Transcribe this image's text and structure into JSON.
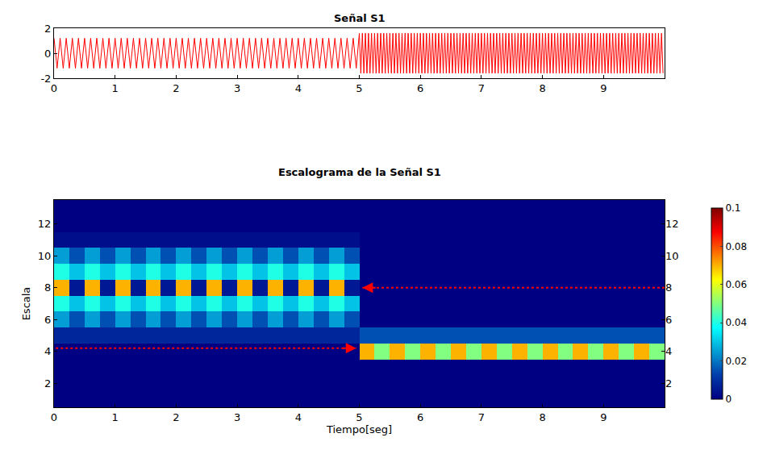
{
  "chart_data": [
    {
      "type": "line",
      "title": "Señal S1",
      "color": "#ff0000",
      "x": [
        0,
        0.05,
        0.1,
        0.15,
        0.2,
        0.25,
        0.3,
        0.35,
        0.4,
        0.45,
        0.5,
        0.55,
        0.6,
        0.65,
        0.7,
        0.75,
        0.8,
        0.85,
        0.9,
        0.95,
        1,
        1.05,
        1.1,
        1.15,
        1.2,
        1.25,
        1.3,
        1.35,
        1.4,
        1.45,
        1.5,
        1.55,
        1.6,
        1.65,
        1.7,
        1.75,
        1.8,
        1.85,
        1.9,
        1.95,
        2,
        2.05,
        2.1,
        2.15,
        2.2,
        2.25,
        2.3,
        2.35,
        2.4,
        2.45,
        2.5,
        2.55,
        2.6,
        2.65,
        2.7,
        2.75,
        2.8,
        2.85,
        2.9,
        2.95,
        3,
        3.05,
        3.1,
        3.15,
        3.2,
        3.25,
        3.3,
        3.35,
        3.4,
        3.45,
        3.5,
        3.55,
        3.6,
        3.65,
        3.7,
        3.75,
        3.8,
        3.85,
        3.9,
        3.95,
        4,
        4.05,
        4.1,
        4.15,
        4.2,
        4.25,
        4.3,
        4.35,
        4.4,
        4.45,
        4.5,
        4.55,
        4.6,
        4.65,
        4.7,
        4.75,
        4.8,
        4.85,
        4.9,
        4.95,
        5,
        5.025,
        5.05,
        5.075,
        5.1,
        5.125,
        5.15,
        5.175,
        5.2,
        5.225,
        5.25,
        5.275,
        5.3,
        5.325,
        5.35,
        5.375,
        5.4,
        5.425,
        5.45,
        5.475,
        5.5,
        5.525,
        5.55,
        5.575,
        5.6,
        5.625,
        5.65,
        5.675,
        5.7,
        5.725,
        5.75,
        5.775,
        5.8,
        5.825,
        5.85,
        5.875,
        5.9,
        5.925,
        5.95,
        5.975,
        6,
        6.025,
        6.05,
        6.075,
        6.1,
        6.125,
        6.15,
        6.175,
        6.2,
        6.225,
        6.25,
        6.275,
        6.3,
        6.325,
        6.35,
        6.375,
        6.4,
        6.425,
        6.45,
        6.475,
        6.5,
        6.525,
        6.55,
        6.575,
        6.6,
        6.625,
        6.65,
        6.675,
        6.7,
        6.725,
        6.75,
        6.775,
        6.8,
        6.825,
        6.85,
        6.875,
        6.9,
        6.925,
        6.95,
        6.975,
        7,
        7.025,
        7.05,
        7.075,
        7.1,
        7.125,
        7.15,
        7.175,
        7.2,
        7.225,
        7.25,
        7.275,
        7.3,
        7.325,
        7.35,
        7.375,
        7.4,
        7.425,
        7.45,
        7.475,
        7.5,
        7.525,
        7.55,
        7.575,
        7.6,
        7.625,
        7.65,
        7.675,
        7.7,
        7.725,
        7.75,
        7.775,
        7.8,
        7.825,
        7.85,
        7.875,
        7.9,
        7.925,
        7.95,
        7.975,
        8,
        8.025,
        8.05,
        8.075,
        8.1,
        8.125,
        8.15,
        8.175,
        8.2,
        8.225,
        8.25,
        8.275,
        8.3,
        8.325,
        8.35,
        8.375,
        8.4,
        8.425,
        8.45,
        8.475,
        8.5,
        8.525,
        8.55,
        8.575,
        8.6,
        8.625,
        8.65,
        8.675,
        8.7,
        8.725,
        8.75,
        8.775,
        8.8,
        8.825,
        8.85,
        8.875,
        8.9,
        8.925,
        8.95,
        8.975,
        9,
        9.025,
        9.05,
        9.075,
        9.1,
        9.125,
        9.15,
        9.175,
        9.2,
        9.225,
        9.25,
        9.275,
        9.3,
        9.325,
        9.35,
        9.375,
        9.4,
        9.425,
        9.45,
        9.475,
        9.5,
        9.525,
        9.55,
        9.575,
        9.6,
        9.625,
        9.65,
        9.675,
        9.7,
        9.725,
        9.75,
        9.775,
        9.8,
        9.825,
        9.85,
        9.875,
        9.9,
        9.925,
        9.95,
        9.975
      ],
      "values": [
        1.2,
        -1.2,
        1.2,
        -1.2,
        1.2,
        -1.2,
        1.2,
        -1.2,
        1.2,
        -1.2,
        1.2,
        -1.2,
        1.2,
        -1.2,
        1.2,
        -1.2,
        1.2,
        -1.2,
        1.2,
        -1.2,
        1.2,
        -1.2,
        1.2,
        -1.2,
        1.2,
        -1.2,
        1.2,
        -1.2,
        1.2,
        -1.2,
        1.2,
        -1.2,
        1.2,
        -1.2,
        1.2,
        -1.2,
        1.2,
        -1.2,
        1.2,
        -1.2,
        1.2,
        -1.2,
        1.2,
        -1.2,
        1.2,
        -1.2,
        1.2,
        -1.2,
        1.2,
        -1.2,
        1.2,
        -1.2,
        1.2,
        -1.2,
        1.2,
        -1.2,
        1.2,
        -1.2,
        1.2,
        -1.2,
        1.2,
        -1.2,
        1.2,
        -1.2,
        1.2,
        -1.2,
        1.2,
        -1.2,
        1.2,
        -1.2,
        1.2,
        -1.2,
        1.2,
        -1.2,
        1.2,
        -1.2,
        1.2,
        -1.2,
        1.2,
        -1.2,
        1.2,
        -1.2,
        1.2,
        -1.2,
        1.2,
        -1.2,
        1.2,
        -1.2,
        1.2,
        -1.2,
        1.2,
        -1.2,
        1.2,
        -1.2,
        1.2,
        -1.2,
        1.2,
        -1.2,
        1.2,
        -1.2,
        1.6,
        -1.6,
        1.6,
        -1.6,
        1.6,
        -1.6,
        1.6,
        -1.6,
        1.6,
        -1.6,
        1.6,
        -1.6,
        1.6,
        -1.6,
        1.6,
        -1.6,
        1.6,
        -1.6,
        1.6,
        -1.6,
        1.6,
        -1.6,
        1.6,
        -1.6,
        1.6,
        -1.6,
        1.6,
        -1.6,
        1.6,
        -1.6,
        1.6,
        -1.6,
        1.6,
        -1.6,
        1.6,
        -1.6,
        1.6,
        -1.6,
        1.6,
        -1.6,
        1.6,
        -1.6,
        1.6,
        -1.6,
        1.6,
        -1.6,
        1.6,
        -1.6,
        1.6,
        -1.6,
        1.6,
        -1.6,
        1.6,
        -1.6,
        1.6,
        -1.6,
        1.6,
        -1.6,
        1.6,
        -1.6,
        1.6,
        -1.6,
        1.6,
        -1.6,
        1.6,
        -1.6,
        1.6,
        -1.6,
        1.6,
        -1.6,
        1.6,
        -1.6,
        1.6,
        -1.6,
        1.6,
        -1.6,
        1.6,
        -1.6,
        1.6,
        -1.6,
        1.6,
        -1.6,
        1.6,
        -1.6,
        1.6,
        -1.6,
        1.6,
        -1.6,
        1.6,
        -1.6,
        1.6,
        -1.6,
        1.6,
        -1.6,
        1.6,
        -1.6,
        1.6,
        -1.6,
        1.6,
        -1.6,
        1.6,
        -1.6,
        1.6,
        -1.6,
        1.6,
        -1.6,
        1.6,
        -1.6,
        1.6,
        -1.6,
        1.6,
        -1.6,
        1.6,
        -1.6,
        1.6,
        -1.6,
        1.6,
        -1.6,
        1.6,
        -1.6,
        1.6,
        -1.6,
        1.6,
        -1.6,
        1.6,
        -1.6,
        1.6,
        -1.6,
        1.6,
        -1.6,
        1.6,
        -1.6,
        1.6,
        -1.6,
        1.6,
        -1.6,
        1.6,
        -1.6,
        1.6,
        -1.6,
        1.6,
        -1.6,
        1.6,
        -1.6,
        1.6,
        -1.6,
        1.6,
        -1.6,
        1.6,
        -1.6,
        1.6,
        -1.6,
        1.6,
        -1.6,
        1.6,
        -1.6,
        1.6,
        -1.6,
        1.6,
        -1.6,
        1.6,
        -1.6,
        1.6,
        -1.6,
        1.6,
        -1.6,
        1.6,
        -1.6,
        1.6,
        -1.6,
        1.6,
        -1.6,
        1.6,
        -1.6,
        1.6,
        -1.6,
        1.6,
        -1.6,
        1.6,
        -1.6,
        1.6,
        -1.6,
        1.6,
        -1.6,
        1.6,
        -1.6,
        1.6,
        -1.6,
        1.6,
        -1.6,
        1.6,
        -1.6,
        1.6,
        -1.6,
        1.6,
        -1.6,
        1.6,
        -1.6,
        1.6,
        -1.6
      ],
      "xlim": [
        0,
        10
      ],
      "xticks": [
        0,
        1,
        2,
        3,
        4,
        5,
        6,
        7,
        8,
        9
      ],
      "ylim": [
        -2,
        2
      ],
      "yticks": [
        -2,
        0,
        2
      ],
      "grid": false
    },
    {
      "type": "heatmap",
      "title": "Escalograma de la Señal S1",
      "x_label": "Tiempo[seg]",
      "y_label": "Escala",
      "x": [
        0.125,
        0.375,
        0.625,
        0.875,
        1.125,
        1.375,
        1.625,
        1.875,
        2.125,
        2.375,
        2.625,
        2.875,
        3.125,
        3.375,
        3.625,
        3.875,
        4.125,
        4.375,
        4.625,
        4.875,
        5.125,
        5.375,
        5.625,
        5.875,
        6.125,
        6.375,
        6.625,
        6.875,
        7.125,
        7.375,
        7.625,
        7.875,
        8.125,
        8.375,
        8.625,
        8.875,
        9.125,
        9.375,
        9.625,
        9.875
      ],
      "y": [
        1,
        2,
        3,
        4,
        5,
        6,
        7,
        8,
        9,
        10,
        11,
        12,
        13
      ],
      "z": [
        [
          0,
          0,
          0,
          0,
          0,
          0,
          0,
          0,
          0,
          0,
          0,
          0,
          0,
          0,
          0,
          0,
          0,
          0,
          0,
          0,
          0,
          0,
          0,
          0,
          0,
          0,
          0,
          0,
          0,
          0,
          0,
          0,
          0,
          0,
          0,
          0,
          0,
          0,
          0,
          0
        ],
        [
          0,
          0,
          0,
          0,
          0,
          0,
          0,
          0,
          0,
          0,
          0,
          0,
          0,
          0,
          0,
          0,
          0,
          0,
          0,
          0,
          0,
          0,
          0,
          0,
          0,
          0,
          0,
          0,
          0,
          0,
          0,
          0,
          0,
          0,
          0,
          0,
          0,
          0,
          0,
          0
        ],
        [
          0,
          0,
          0,
          0,
          0,
          0,
          0,
          0,
          0,
          0,
          0,
          0,
          0,
          0,
          0,
          0,
          0,
          0,
          0,
          0,
          0,
          0,
          0,
          0,
          0,
          0,
          0,
          0,
          0,
          0,
          0,
          0,
          0,
          0,
          0,
          0,
          0,
          0,
          0,
          0
        ],
        [
          0,
          0,
          0,
          0,
          0,
          0,
          0,
          0,
          0,
          0,
          0,
          0,
          0,
          0,
          0,
          0,
          0,
          0,
          0,
          0,
          0.07,
          0.05,
          0.07,
          0.05,
          0.07,
          0.05,
          0.07,
          0.05,
          0.07,
          0.05,
          0.07,
          0.05,
          0.07,
          0.05,
          0.07,
          0.05,
          0.07,
          0.05,
          0.07,
          0.05
        ],
        [
          0.008,
          0.008,
          0.008,
          0.008,
          0.008,
          0.008,
          0.008,
          0.008,
          0.008,
          0.008,
          0.008,
          0.008,
          0.008,
          0.008,
          0.008,
          0.008,
          0.008,
          0.008,
          0.008,
          0.008,
          0.015,
          0.015,
          0.015,
          0.015,
          0.015,
          0.015,
          0.015,
          0.015,
          0.015,
          0.015,
          0.015,
          0.015,
          0.015,
          0.015,
          0.015,
          0.015,
          0.015,
          0.015,
          0.015,
          0.015
        ],
        [
          0.025,
          0.015,
          0.025,
          0.015,
          0.025,
          0.015,
          0.025,
          0.015,
          0.025,
          0.015,
          0.025,
          0.015,
          0.025,
          0.015,
          0.025,
          0.015,
          0.025,
          0.015,
          0.025,
          0.015,
          0,
          0,
          0,
          0,
          0,
          0,
          0,
          0,
          0,
          0,
          0,
          0,
          0,
          0,
          0,
          0,
          0,
          0,
          0,
          0
        ],
        [
          0.04,
          0.03,
          0.04,
          0.03,
          0.04,
          0.03,
          0.04,
          0.03,
          0.04,
          0.03,
          0.04,
          0.03,
          0.04,
          0.03,
          0.04,
          0.03,
          0.04,
          0.03,
          0.04,
          0.03,
          0,
          0,
          0,
          0,
          0,
          0,
          0,
          0,
          0,
          0,
          0,
          0,
          0,
          0,
          0,
          0,
          0,
          0,
          0,
          0
        ],
        [
          0.07,
          0.005,
          0.07,
          0.005,
          0.07,
          0.005,
          0.07,
          0.005,
          0.07,
          0.005,
          0.07,
          0.005,
          0.07,
          0.005,
          0.07,
          0.005,
          0.07,
          0.005,
          0.07,
          0.005,
          0,
          0,
          0,
          0,
          0,
          0,
          0,
          0,
          0,
          0,
          0,
          0,
          0,
          0,
          0,
          0,
          0,
          0,
          0,
          0
        ],
        [
          0.04,
          0.03,
          0.04,
          0.03,
          0.04,
          0.03,
          0.04,
          0.03,
          0.04,
          0.03,
          0.04,
          0.03,
          0.04,
          0.03,
          0.04,
          0.03,
          0.04,
          0.03,
          0.04,
          0.03,
          0,
          0,
          0,
          0,
          0,
          0,
          0,
          0,
          0,
          0,
          0,
          0,
          0,
          0,
          0,
          0,
          0,
          0,
          0,
          0
        ],
        [
          0.025,
          0.015,
          0.025,
          0.015,
          0.025,
          0.015,
          0.025,
          0.015,
          0.025,
          0.015,
          0.025,
          0.015,
          0.025,
          0.015,
          0.025,
          0.015,
          0.025,
          0.015,
          0.025,
          0.015,
          0,
          0,
          0,
          0,
          0,
          0,
          0,
          0,
          0,
          0,
          0,
          0,
          0,
          0,
          0,
          0,
          0,
          0,
          0,
          0
        ],
        [
          0.003,
          0.003,
          0.003,
          0.003,
          0.003,
          0.003,
          0.003,
          0.003,
          0.003,
          0.003,
          0.003,
          0.003,
          0.003,
          0.003,
          0.003,
          0.003,
          0.003,
          0.003,
          0.003,
          0.003,
          0,
          0,
          0,
          0,
          0,
          0,
          0,
          0,
          0,
          0,
          0,
          0,
          0,
          0,
          0,
          0,
          0,
          0,
          0,
          0
        ],
        [
          0,
          0,
          0,
          0,
          0,
          0,
          0,
          0,
          0,
          0,
          0,
          0,
          0,
          0,
          0,
          0,
          0,
          0,
          0,
          0,
          0,
          0,
          0,
          0,
          0,
          0,
          0,
          0,
          0,
          0,
          0,
          0,
          0,
          0,
          0,
          0,
          0,
          0,
          0,
          0
        ],
        [
          0,
          0,
          0,
          0,
          0,
          0,
          0,
          0,
          0,
          0,
          0,
          0,
          0,
          0,
          0,
          0,
          0,
          0,
          0,
          0,
          0,
          0,
          0,
          0,
          0,
          0,
          0,
          0,
          0,
          0,
          0,
          0,
          0,
          0,
          0,
          0,
          0,
          0,
          0,
          0
        ]
      ],
      "xlim": [
        0,
        10
      ],
      "xticks": [
        0,
        1,
        2,
        3,
        4,
        5,
        6,
        7,
        8,
        9
      ],
      "ylim": [
        0.5,
        13.5
      ],
      "yticks": [
        2,
        4,
        6,
        8,
        10,
        12
      ],
      "colorbar": {
        "range": [
          0,
          0.1
        ],
        "ticks": [
          0,
          0.02,
          0.04,
          0.06,
          0.08,
          0.1
        ]
      },
      "arrows": [
        {
          "y": 8,
          "from": 10,
          "to": 5.05,
          "color": "#ff0000"
        },
        {
          "y": 4.2,
          "from": -0.05,
          "to": 4.95,
          "color": "#ff0000"
        }
      ],
      "grid": false
    }
  ]
}
